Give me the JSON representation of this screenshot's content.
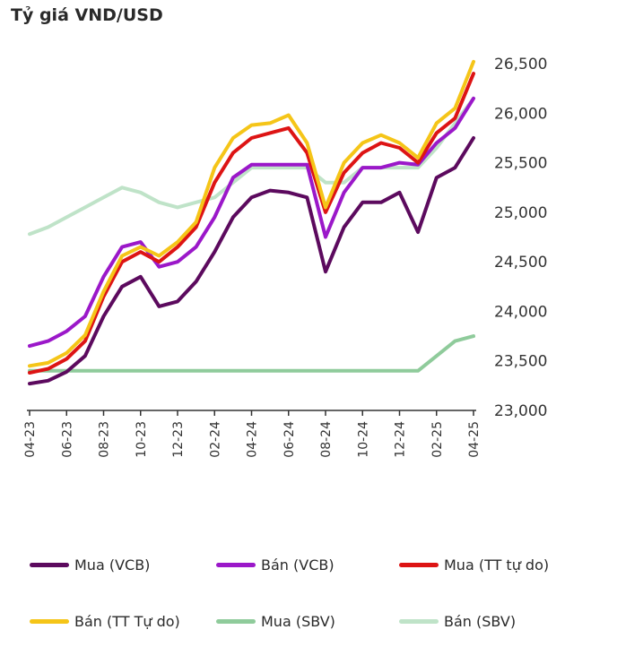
{
  "title": "Tỷ giá VND/USD",
  "chart_data": {
    "type": "line",
    "title": "Tỷ giá VND/USD",
    "xlabel": "",
    "ylabel": "",
    "ylim": [
      23000,
      26600
    ],
    "y_ticks": [
      "23,000",
      "23,500",
      "24,000",
      "24,500",
      "25,000",
      "25,500",
      "26,000",
      "26,500"
    ],
    "y_tick_values": [
      23000,
      23500,
      24000,
      24500,
      25000,
      25500,
      26000,
      26500
    ],
    "x_ticks": [
      "04-23",
      "06-23",
      "08-23",
      "10-23",
      "12-23",
      "02-24",
      "04-24",
      "06-24",
      "08-24",
      "10-24",
      "12-24",
      "02-25",
      "04-25"
    ],
    "x": [
      "04-23",
      "05-23",
      "06-23",
      "07-23",
      "08-23",
      "09-23",
      "10-23",
      "11-23",
      "12-23",
      "01-24",
      "02-24",
      "03-24",
      "04-24",
      "05-24",
      "06-24",
      "07-24",
      "08-24",
      "09-24",
      "10-24",
      "11-24",
      "12-24",
      "01-25",
      "02-25",
      "03-25",
      "04-25"
    ],
    "series": [
      {
        "name": "Mua (VCB)",
        "color": "#5c0a5e",
        "values": [
          23270,
          23300,
          23390,
          23550,
          23950,
          24250,
          24350,
          24050,
          24100,
          24300,
          24600,
          24950,
          25150,
          25220,
          25200,
          25150,
          24400,
          24850,
          25100,
          25100,
          25200,
          24800,
          25350,
          25450,
          25750
        ]
      },
      {
        "name": "Bán (VCB)",
        "color": "#9b18c9",
        "values": [
          23650,
          23700,
          23800,
          23950,
          24350,
          24650,
          24700,
          24450,
          24500,
          24650,
          24950,
          25350,
          25480,
          25480,
          25480,
          25480,
          24750,
          25200,
          25450,
          25450,
          25500,
          25480,
          25700,
          25850,
          26150
        ]
      },
      {
        "name": "Mua (TT tự do)",
        "color": "#dd1414",
        "values": [
          23380,
          23420,
          23520,
          23700,
          24150,
          24500,
          24600,
          24500,
          24650,
          24850,
          25300,
          25600,
          25750,
          25800,
          25850,
          25600,
          25000,
          25400,
          25600,
          25700,
          25650,
          25500,
          25800,
          25950,
          26400
        ]
      },
      {
        "name": "Bán (TT Tự do)",
        "color": "#f5c518",
        "values": [
          23450,
          23480,
          23580,
          23760,
          24200,
          24560,
          24650,
          24560,
          24700,
          24900,
          25450,
          25750,
          25880,
          25900,
          25980,
          25700,
          25050,
          25500,
          25700,
          25780,
          25700,
          25550,
          25900,
          26050,
          26520
        ]
      },
      {
        "name": "Mua  (SBV)",
        "color": "#8fcb9b",
        "values": [
          23400,
          23400,
          23400,
          23400,
          23400,
          23400,
          23400,
          23400,
          23400,
          23400,
          23400,
          23400,
          23400,
          23400,
          23400,
          23400,
          23400,
          23400,
          23400,
          23400,
          23400,
          23400,
          23550,
          23700,
          23750
        ]
      },
      {
        "name": "Bán  (SBV)",
        "color": "#bfe3c8",
        "values": [
          24780,
          24850,
          24950,
          25050,
          25150,
          25250,
          25200,
          25100,
          25050,
          25100,
          25150,
          25300,
          25450,
          25450,
          25450,
          25450,
          25300,
          25300,
          25450,
          25450,
          25450,
          25450,
          25650,
          25900,
          26150
        ]
      }
    ],
    "legend_position": "bottom",
    "grid": false
  },
  "legend": [
    {
      "label": "Mua (VCB)",
      "color": "#5c0a5e"
    },
    {
      "label": "Bán (VCB)",
      "color": "#9b18c9"
    },
    {
      "label": "Mua (TT tự do)",
      "color": "#dd1414"
    },
    {
      "label": "Bán (TT Tự do)",
      "color": "#f5c518"
    },
    {
      "label": "Mua  (SBV)",
      "color": "#8fcb9b"
    },
    {
      "label": "Bán  (SBV)",
      "color": "#bfe3c8"
    }
  ]
}
